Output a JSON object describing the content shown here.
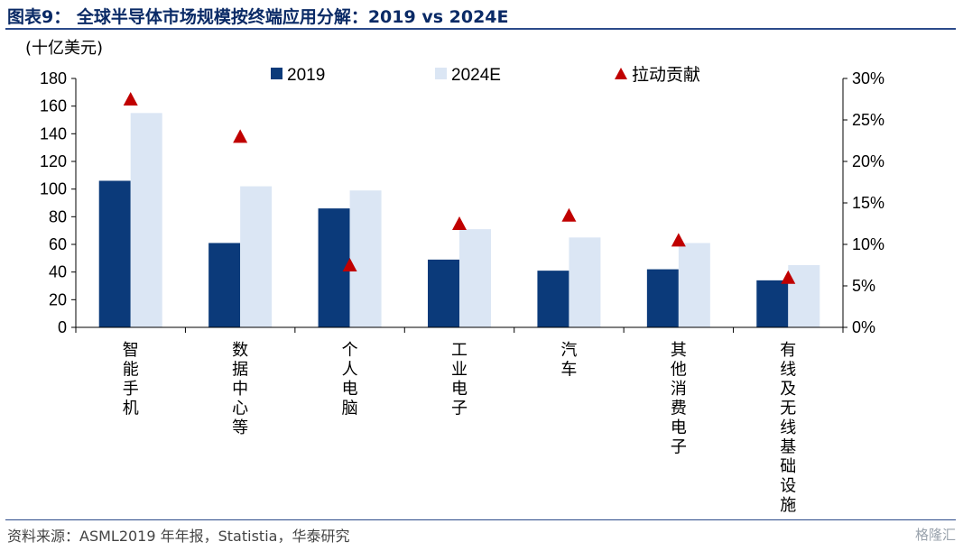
{
  "header": {
    "title": "图表9：  全球半导体市场规模按终端应用分解：2019 vs 2024E"
  },
  "footer": {
    "source": "资料来源：ASML2019 年年报，Statistia，华泰研究",
    "watermark": "格隆汇"
  },
  "colors": {
    "series_2019": "#0b3a7a",
    "series_2024E": "#dbe6f4",
    "series_contribution": "#c00000",
    "title": "#0a2a66"
  },
  "chart_data": {
    "type": "bar",
    "unit_label": "(十亿美元)",
    "categories": [
      [
        "智",
        "能",
        "手",
        "机"
      ],
      [
        "数",
        "据",
        "中",
        "心",
        "等"
      ],
      [
        "个",
        "人",
        "电",
        "脑"
      ],
      [
        "工",
        "业",
        "电",
        "子"
      ],
      [
        "汽",
        "车"
      ],
      [
        "其",
        "他",
        "消",
        "费",
        "电",
        "子"
      ],
      [
        "有",
        "线",
        "及",
        "无",
        "线",
        "基",
        "础",
        "设",
        "施"
      ]
    ],
    "series": [
      {
        "name": "2019",
        "axis": "left",
        "kind": "bar",
        "values": [
          106,
          61,
          86,
          49,
          41,
          42,
          34
        ]
      },
      {
        "name": "2024E",
        "axis": "left",
        "kind": "bar",
        "values": [
          155,
          102,
          99,
          71,
          65,
          61,
          45
        ]
      },
      {
        "name": "拉动贡献",
        "axis": "right",
        "kind": "marker",
        "values": [
          27.5,
          23.0,
          7.5,
          12.5,
          13.5,
          10.5,
          6.0
        ]
      }
    ],
    "y_left": {
      "min": 0,
      "max": 180,
      "step": 20,
      "ticks": [
        "0",
        "20",
        "40",
        "60",
        "80",
        "100",
        "120",
        "140",
        "160",
        "180"
      ]
    },
    "y_right": {
      "min": 0,
      "max": 30,
      "step": 5,
      "ticks": [
        "0%",
        "5%",
        "10%",
        "15%",
        "20%",
        "25%",
        "30%"
      ]
    },
    "legend_position": "top",
    "grid": false
  }
}
